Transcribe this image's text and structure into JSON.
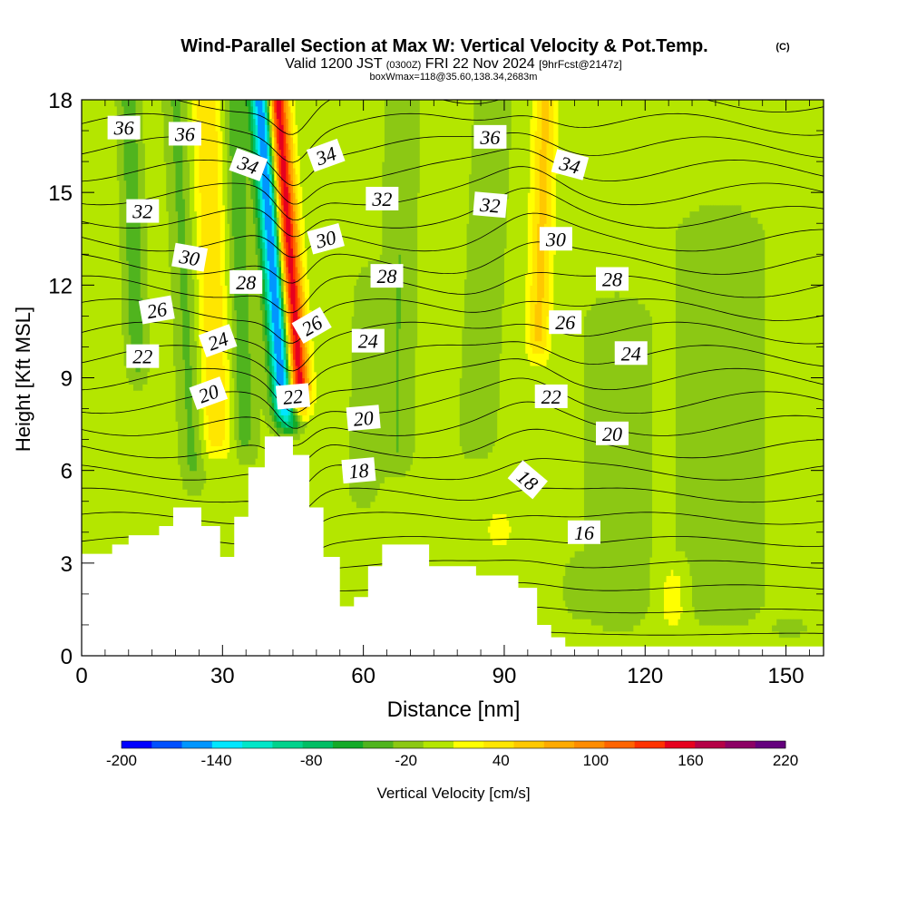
{
  "header": {
    "title_main": "Wind-Parallel Section at Max W: Vertical Velocity & Pot.Temp.",
    "title_copyright": "(C)",
    "valid_prefix": "Valid 1200 JST",
    "valid_utc": "(0300Z)",
    "valid_date": "FRI 22 Nov 2024",
    "valid_fcst": "[9hrFcst@2147z]",
    "box_info": "boxWmax=118@35.60,138.34,2683m"
  },
  "chart_data": {
    "type": "heatmap",
    "xlabel": "Distance [nm]",
    "ylabel": "Height [Kft MSL]",
    "xlim": [
      0,
      158
    ],
    "ylim": [
      0,
      18
    ],
    "x_ticks": [
      0,
      30,
      60,
      90,
      120,
      150
    ],
    "y_ticks": [
      0,
      3,
      6,
      9,
      12,
      15,
      18
    ],
    "colorbar": {
      "label": "Vertical Velocity [cm/s]",
      "min": -200,
      "max": 220,
      "step": 20,
      "tick_labels": [
        "-200",
        "-140",
        "-80",
        "-20",
        "40",
        "100",
        "160",
        "220"
      ],
      "colors": [
        "#0000ff",
        "#0050ff",
        "#0096ff",
        "#00e6ff",
        "#00e6c8",
        "#00d28c",
        "#00be64",
        "#14aa28",
        "#50b41e",
        "#8cc814",
        "#b4e600",
        "#ffff00",
        "#ffe600",
        "#ffc800",
        "#ffaa00",
        "#ff8c00",
        "#ff6400",
        "#ff3200",
        "#e6001e",
        "#b40046",
        "#8c0064",
        "#64007d"
      ]
    },
    "background_value": 5,
    "terrain": [
      [
        0,
        3.3
      ],
      [
        6.5,
        3.3
      ],
      [
        6.5,
        3.6
      ],
      [
        10,
        3.6
      ],
      [
        10,
        3.9
      ],
      [
        16.5,
        3.9
      ],
      [
        16.5,
        4.2
      ],
      [
        19.5,
        4.2
      ],
      [
        19.5,
        4.8
      ],
      [
        25.5,
        4.8
      ],
      [
        25.5,
        4.2
      ],
      [
        29.5,
        4.2
      ],
      [
        29.5,
        3.2
      ],
      [
        32.5,
        3.2
      ],
      [
        32.5,
        4.5
      ],
      [
        35.5,
        4.5
      ],
      [
        35.5,
        6.1
      ],
      [
        39,
        6.1
      ],
      [
        39,
        7.1
      ],
      [
        45,
        7.1
      ],
      [
        45,
        6.5
      ],
      [
        48.5,
        6.5
      ],
      [
        48.5,
        4.8
      ],
      [
        51.5,
        4.8
      ],
      [
        51.5,
        3.2
      ],
      [
        55,
        3.2
      ],
      [
        55,
        1.6
      ],
      [
        58,
        1.6
      ],
      [
        58,
        1.9
      ],
      [
        61,
        1.9
      ],
      [
        61,
        2.9
      ],
      [
        64,
        2.9
      ],
      [
        64,
        3.6
      ],
      [
        74,
        3.6
      ],
      [
        74,
        2.9
      ],
      [
        84,
        2.9
      ],
      [
        84,
        2.6
      ],
      [
        93,
        2.6
      ],
      [
        93,
        2.2
      ],
      [
        97,
        2.2
      ],
      [
        97,
        1.0
      ],
      [
        100,
        1.0
      ],
      [
        100,
        0.6
      ],
      [
        103,
        0.6
      ],
      [
        103,
        0.3
      ],
      [
        158,
        0.3
      ]
    ],
    "updraft_cores": [
      {
        "x": 12,
        "width": 2.0,
        "w": -40,
        "z": [
          8.5,
          18
        ],
        "tilt": -0.2
      },
      {
        "x": 24,
        "width": 2.2,
        "w": -30,
        "z": [
          5.0,
          18
        ],
        "tilt": -0.3
      },
      {
        "x": 35,
        "width": 2.2,
        "w": -40,
        "z": [
          6.0,
          18
        ],
        "tilt": -0.2
      },
      {
        "x": 44,
        "width": 2.5,
        "w": -210,
        "z": [
          7.0,
          18
        ],
        "tilt": -0.5
      },
      {
        "x": 46.5,
        "width": 2.5,
        "w": 210,
        "z": [
          7.5,
          18
        ],
        "tilt": -0.5
      },
      {
        "x": 29,
        "width": 3.0,
        "w": 55,
        "z": [
          6.0,
          18
        ],
        "tilt": -0.2
      },
      {
        "x": 60,
        "width": 3.0,
        "w": -20,
        "z": [
          4.5,
          13
        ],
        "tilt": 0.2
      },
      {
        "x": 67,
        "width": 3.0,
        "w": -25,
        "z": [
          5.5,
          18
        ],
        "tilt": 0.1
      },
      {
        "x": 84,
        "width": 3.5,
        "w": -20,
        "z": [
          6.0,
          18
        ],
        "tilt": 0.3
      },
      {
        "x": 97,
        "width": 2.5,
        "w": 60,
        "z": [
          9.0,
          18
        ],
        "tilt": 0.2
      },
      {
        "x": 114,
        "width": 6.0,
        "w": -20,
        "z": [
          0.5,
          12
        ],
        "tilt": 0.0
      },
      {
        "x": 136,
        "width": 9.0,
        "w": -15,
        "z": [
          0.5,
          15
        ],
        "tilt": 0.0
      },
      {
        "x": 126,
        "width": 3.0,
        "w": 30,
        "z": [
          0.3,
          3.5
        ],
        "tilt": 0.0
      },
      {
        "x": 89,
        "width": 3.0,
        "w": 35,
        "z": [
          3.0,
          5.2
        ],
        "tilt": 0.0
      },
      {
        "x": 106,
        "width": 3.0,
        "w": -20,
        "z": [
          1.0,
          3.5
        ],
        "tilt": 0.0
      },
      {
        "x": 151,
        "width": 4.0,
        "w": -20,
        "z": [
          0.3,
          1.5
        ],
        "tilt": 0.0
      }
    ],
    "theta_contours": {
      "levels": [
        14,
        15,
        16,
        17,
        18,
        19,
        20,
        21,
        22,
        23,
        24,
        25,
        26,
        27,
        28,
        29,
        30,
        31,
        32,
        33,
        34,
        35,
        36,
        37
      ],
      "labels": [
        {
          "text": "36",
          "x": 9,
          "y": 17.1,
          "rot": 0
        },
        {
          "text": "36",
          "x": 22,
          "y": 16.9,
          "rot": 0
        },
        {
          "text": "34",
          "x": 35.5,
          "y": 15.9,
          "rot": 20
        },
        {
          "text": "34",
          "x": 52,
          "y": 16.2,
          "rot": -20
        },
        {
          "text": "36",
          "x": 87,
          "y": 16.8,
          "rot": 0
        },
        {
          "text": "34",
          "x": 104,
          "y": 15.9,
          "rot": 15
        },
        {
          "text": "32",
          "x": 13,
          "y": 14.4,
          "rot": 0
        },
        {
          "text": "32",
          "x": 64,
          "y": 14.8,
          "rot": 0
        },
        {
          "text": "32",
          "x": 87,
          "y": 14.6,
          "rot": 5
        },
        {
          "text": "30",
          "x": 23,
          "y": 12.9,
          "rot": 10
        },
        {
          "text": "30",
          "x": 52,
          "y": 13.5,
          "rot": -15
        },
        {
          "text": "30",
          "x": 101,
          "y": 13.5,
          "rot": 0
        },
        {
          "text": "28",
          "x": 35,
          "y": 12.1,
          "rot": 0
        },
        {
          "text": "28",
          "x": 65,
          "y": 12.3,
          "rot": 0
        },
        {
          "text": "28",
          "x": 113,
          "y": 12.2,
          "rot": 0
        },
        {
          "text": "26",
          "x": 16,
          "y": 11.2,
          "rot": -10
        },
        {
          "text": "26",
          "x": 49,
          "y": 10.7,
          "rot": -30
        },
        {
          "text": "26",
          "x": 103,
          "y": 10.8,
          "rot": 0
        },
        {
          "text": "24",
          "x": 29,
          "y": 10.2,
          "rot": -20
        },
        {
          "text": "24",
          "x": 61,
          "y": 10.2,
          "rot": 0
        },
        {
          "text": "24",
          "x": 117,
          "y": 9.8,
          "rot": 0
        },
        {
          "text": "22",
          "x": 13,
          "y": 9.7,
          "rot": 0
        },
        {
          "text": "22",
          "x": 45,
          "y": 8.4,
          "rot": -5
        },
        {
          "text": "22",
          "x": 100,
          "y": 8.4,
          "rot": 0
        },
        {
          "text": "20",
          "x": 27,
          "y": 8.5,
          "rot": -20
        },
        {
          "text": "20",
          "x": 60,
          "y": 7.7,
          "rot": -5
        },
        {
          "text": "20",
          "x": 113,
          "y": 7.2,
          "rot": 0
        },
        {
          "text": "18",
          "x": 59,
          "y": 6.0,
          "rot": -5
        },
        {
          "text": "18",
          "x": 95,
          "y": 5.7,
          "rot": 40
        },
        {
          "text": "16",
          "x": 107,
          "y": 4.0,
          "rot": 0
        }
      ]
    }
  }
}
